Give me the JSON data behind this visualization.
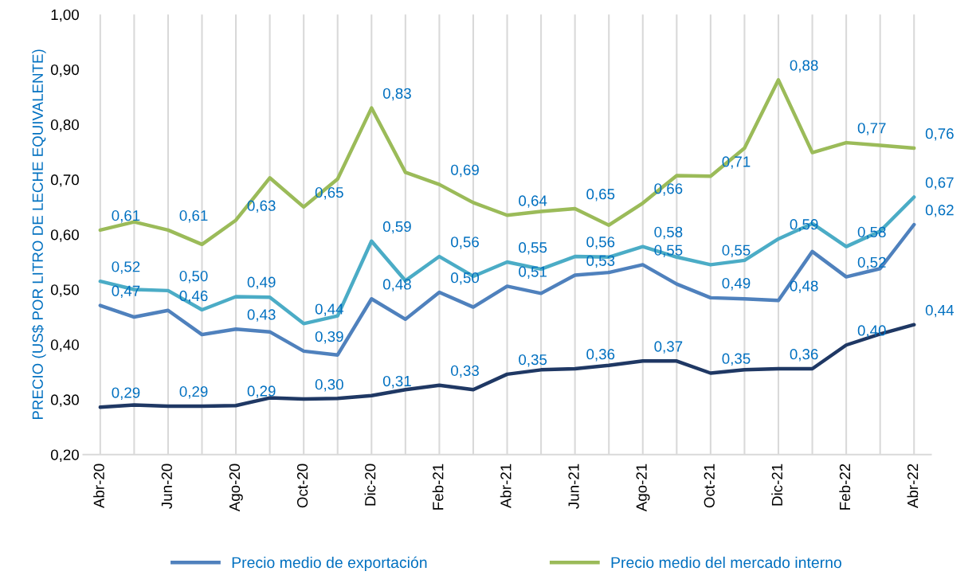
{
  "chart_data": {
    "type": "line",
    "ylabel": "PRECIO (US$ POR LITRO DE LECHE EQUIVALENTE)",
    "categories": [
      "Abr-20",
      null,
      "Jun-20",
      null,
      "Ago-20",
      null,
      "Oct-20",
      null,
      "Dic-20",
      null,
      "Feb-21",
      null,
      "Abr-21",
      null,
      "Jun-21",
      null,
      "Ago-21",
      null,
      "Oct-21",
      null,
      "Dic-21",
      null,
      "Feb-22",
      null,
      "Abr-22"
    ],
    "ylim": [
      0.2,
      1.0
    ],
    "yticks": [
      {
        "value": 0.2,
        "label": "0,20"
      },
      {
        "value": 0.3,
        "label": "0,30"
      },
      {
        "value": 0.4,
        "label": "0,40"
      },
      {
        "value": 0.5,
        "label": "0,50"
      },
      {
        "value": 0.6,
        "label": "0,60"
      },
      {
        "value": 0.7,
        "label": "0,70"
      },
      {
        "value": 0.8,
        "label": "0,80"
      },
      {
        "value": 0.9,
        "label": "0,90"
      },
      {
        "value": 1.0,
        "label": "1,00"
      }
    ],
    "grid": "x",
    "legend": "bottom",
    "marker": "none",
    "line_style": "solid",
    "series": [
      {
        "name": "Precio medio de exportación",
        "color": "#4f81bd",
        "values": [
          0.471,
          0.45,
          0.462,
          0.418,
          0.428,
          0.423,
          0.388,
          0.381,
          0.483,
          0.446,
          0.495,
          0.468,
          0.506,
          0.493,
          0.526,
          0.531,
          0.545,
          0.51,
          0.485,
          0.483,
          0.48,
          0.569,
          0.523,
          0.538,
          0.618
        ],
        "value_labels": [
          "0,47",
          null,
          "0,46",
          null,
          "0,43",
          null,
          "0,39",
          null,
          "0,48",
          null,
          "0,50",
          null,
          "0,51",
          null,
          "0,53",
          null,
          "0,55",
          null,
          "0,49",
          null,
          "0,48",
          null,
          "0,52",
          null,
          "0,62"
        ]
      },
      {
        "color": "#4bacc6",
        "values": [
          0.515,
          0.5,
          0.498,
          0.463,
          0.487,
          0.486,
          0.438,
          0.452,
          0.588,
          0.516,
          0.56,
          0.524,
          0.55,
          0.537,
          0.56,
          0.559,
          0.578,
          0.559,
          0.545,
          0.553,
          0.592,
          0.62,
          0.578,
          0.606,
          0.668
        ],
        "value_labels": [
          "0,52",
          null,
          "0,50",
          null,
          "0,49",
          null,
          "0,44",
          null,
          "0,59",
          null,
          "0,56",
          null,
          "0,55",
          null,
          "0,56",
          null,
          "0,58",
          null,
          "0,55",
          null,
          "0,59",
          null,
          "0,58",
          null,
          "0,67"
        ]
      },
      {
        "name": "Precio medio del mercado interno",
        "color": "#9bbb59",
        "values": [
          0.608,
          0.623,
          0.608,
          0.582,
          0.626,
          0.703,
          0.65,
          0.701,
          0.83,
          0.713,
          0.691,
          0.658,
          0.635,
          0.642,
          0.647,
          0.617,
          0.657,
          0.707,
          0.706,
          0.757,
          0.881,
          0.749,
          0.767,
          0.762,
          0.757
        ],
        "value_labels": [
          "0,61",
          null,
          "0,61",
          null,
          "0,63",
          null,
          "0,65",
          null,
          "0,83",
          null,
          "0,69",
          null,
          "0,64",
          null,
          "0,65",
          null,
          "0,66",
          null,
          "0,71",
          null,
          "0,88",
          null,
          "0,77",
          null,
          "0,76"
        ]
      },
      {
        "color": "#1f3864",
        "values": [
          0.286,
          0.29,
          0.288,
          0.288,
          0.289,
          0.303,
          0.301,
          0.302,
          0.307,
          0.318,
          0.326,
          0.318,
          0.346,
          0.354,
          0.356,
          0.362,
          0.37,
          0.37,
          0.348,
          0.354,
          0.356,
          0.356,
          0.399,
          0.419,
          0.436
        ],
        "value_labels": [
          "0,29",
          null,
          "0,29",
          null,
          "0,29",
          null,
          "0,30",
          null,
          "0,31",
          null,
          "0,33",
          null,
          "0,35",
          null,
          "0,36",
          null,
          "0,37",
          null,
          "0,35",
          null,
          "0,36",
          null,
          "0,40",
          null,
          "0,44"
        ]
      }
    ]
  }
}
